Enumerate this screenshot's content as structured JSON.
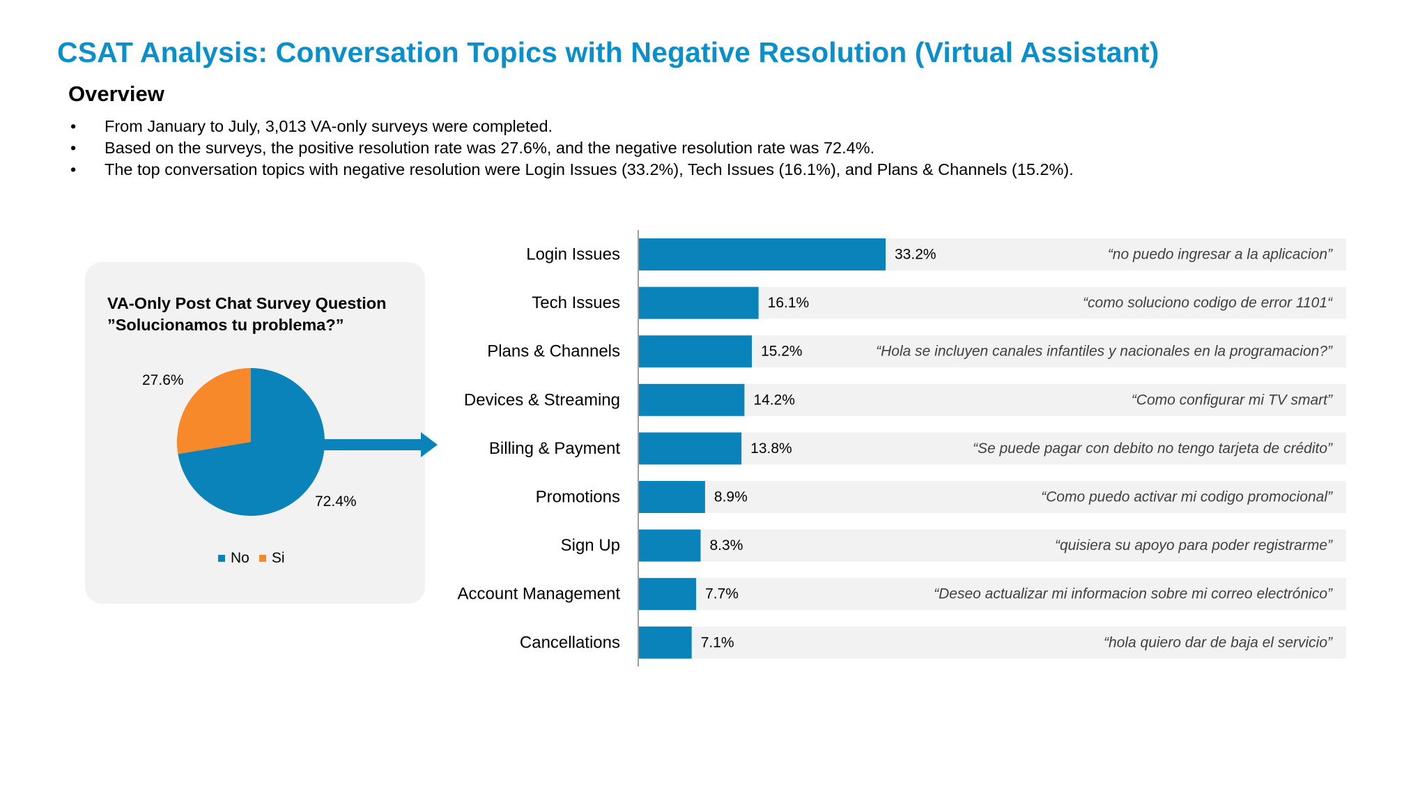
{
  "slide": {
    "title": "CSAT Analysis: Conversation Topics with Negative Resolution (Virtual Assistant)",
    "overview_heading": "Overview",
    "bullets": [
      "From January to July, 3,013 VA-only surveys were completed.",
      "Based on the surveys, the positive resolution rate was 27.6%, and the negative resolution rate was 72.4%.",
      "The top conversation topics with negative resolution were Login Issues (33.2%), Tech Issues (16.1%), and Plans & Channels (15.2%)."
    ],
    "bullet_glyph": "•"
  },
  "colors": {
    "title": "#0a8fcb",
    "no": "#0a83ba",
    "si": "#f7892b",
    "bar": "#0a83ba",
    "quote_bg": "#f2f2f2"
  },
  "chart_data": [
    {
      "type": "pie",
      "title": "VA-Only Post Chat Survey Question",
      "subtitle": "”Solucionamos tu problema?”",
      "categories": [
        "No",
        "Si"
      ],
      "values": [
        72.4,
        27.6
      ],
      "value_labels": [
        "72.4%",
        "27.6%"
      ],
      "legend": "bottom"
    },
    {
      "type": "bar",
      "orientation": "horizontal",
      "categories": [
        "Login Issues",
        "Tech Issues",
        "Plans & Channels",
        "Devices & Streaming",
        "Billing & Payment",
        "Promotions",
        "Sign Up",
        "Account Management",
        "Cancellations"
      ],
      "values": [
        33.2,
        16.1,
        15.2,
        14.2,
        13.8,
        8.9,
        8.3,
        7.7,
        7.1
      ],
      "value_labels": [
        "33.2%",
        "16.1%",
        "15.2%",
        "14.2%",
        "13.8%",
        "8.9%",
        "8.3%",
        "7.7%",
        "7.1%"
      ],
      "annotations": [
        "“no puedo ingresar a la aplicacion”",
        "“como soluciono codigo de error 1101“",
        "“Hola se incluyen canales infantiles y nacionales en la programacion?”",
        "“Como configurar mi TV smart”",
        "“Se puede pagar con debito no tengo tarjeta de crédito”",
        "“Como puedo activar mi  codigo promocional”",
        "“quisiera su apoyo para poder registrarme”",
        "“Deseo actualizar mi informacion sobre mi correo electrónico”",
        "“hola quiero dar de baja el servicio”"
      ],
      "xlim": [
        0,
        100
      ],
      "grid": false,
      "legend": "none"
    }
  ]
}
